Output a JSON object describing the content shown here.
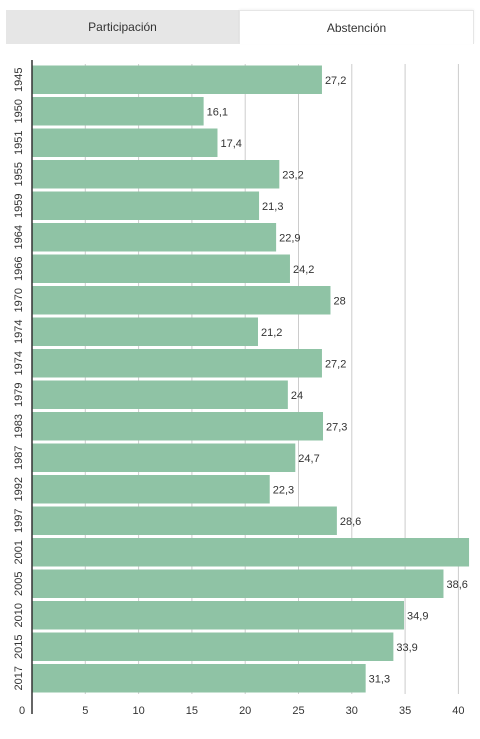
{
  "tabs": [
    {
      "label": "Participación",
      "active": false
    },
    {
      "label": "Abstención",
      "active": true
    }
  ],
  "colors": {
    "bar": "#8fc3a5",
    "grid": "#cccccc",
    "axis": "#333333",
    "text": "#333333"
  },
  "chart_data": {
    "type": "bar",
    "orientation": "horizontal",
    "title": "",
    "xlabel": "",
    "ylabel": "",
    "grid": true,
    "xlim": [
      0,
      41
    ],
    "xticks": [
      0,
      5,
      10,
      15,
      20,
      25,
      30,
      35,
      40
    ],
    "categories": [
      "1945",
      "1950",
      "1951",
      "1955",
      "1959",
      "1964",
      "1966",
      "1970",
      "1974",
      "1974",
      "1979",
      "1983",
      "1987",
      "1992",
      "1997",
      "2001",
      "2005",
      "2010",
      "2015",
      "2017"
    ],
    "values": [
      27.2,
      16.1,
      17.4,
      23.2,
      21.3,
      22.9,
      24.2,
      28,
      21.2,
      27.2,
      24,
      27.3,
      24.7,
      22.3,
      28.6,
      41,
      38.6,
      34.9,
      33.9,
      31.3
    ],
    "value_labels": [
      "27,2",
      "16,1",
      "17,4",
      "23,2",
      "21,3",
      "22,9",
      "24,2",
      "28",
      "21,2",
      "27,2",
      "24",
      "27,3",
      "24,7",
      "22,3",
      "28,6",
      "",
      "38,6",
      "34,9",
      "33,9",
      "31,3"
    ]
  }
}
